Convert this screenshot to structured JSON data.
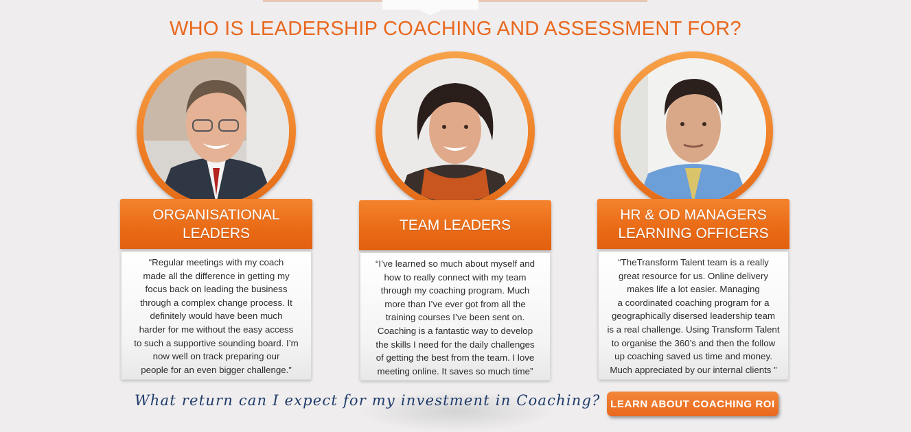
{
  "page": {
    "headline": "WHO IS LEADERSHIP COACHING AND ASSESSMENT FOR?"
  },
  "cards": [
    {
      "title": "ORGANISATIONAL\nLEADERS",
      "photo": "man-with-glasses-portrait",
      "quote": "“Regular meetings with my coach\nmade all the difference in getting my\nfocus back on leading the business\nthrough a complex change process. It\ndefinitely would have been much\nharder for me without the easy access\nto such a supportive sounding board. I’m\nnow well on track preparing our\npeople for an even bigger challenge.”"
    },
    {
      "title": "TEAM LEADERS",
      "photo": "woman-with-scarf-portrait",
      "quote": "“I’ve learned so much about myself and\nhow to really connect with my team\nthrough my coaching program.  Much\nmore than I’ve ever got from all the\ntraining courses I’ve been sent on.\nCoaching is a fantastic  way to develop\nthe skills I need for the daily challenges\nof getting the best from the team.  I love\nmeeting online. It saves so much time”"
    },
    {
      "title": "HR & OD MANAGERS\nLEARNING OFFICERS",
      "photo": "man-in-blue-shirt-portrait",
      "quote": "“TheTransform Talent team is a really\ngreat resource for us. Online delivery\nmakes life a lot easier. Managing\na coordinated coaching program for a\ngeographically disersed leadership team\nis a real challenge. Using Transform Talent\nto organise the 360’s and then the follow\nup coaching saved us time and money.\nMuch appreciated by our internal clients ”"
    }
  ],
  "roi": {
    "question": "What return can I expect for my investment in Coaching?",
    "button_label": "LEARN ABOUT COACHING ROI"
  },
  "colors": {
    "accent_orange": "#e8681e",
    "question_blue": "#1e3b6a",
    "background": "#efedee"
  }
}
